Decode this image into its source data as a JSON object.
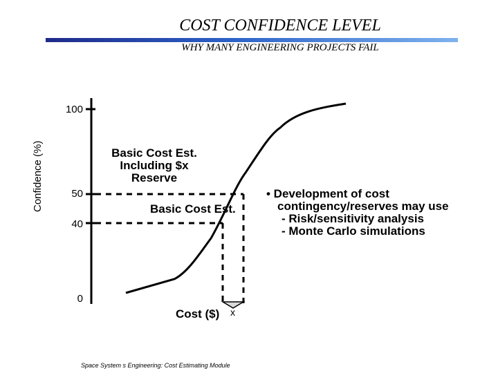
{
  "header": {
    "title": "COST CONFIDENCE LEVEL",
    "subtitle": "WHY MANY ENGINEERING PROJECTS FAIL"
  },
  "chart": {
    "ylabel": "Confidence (%)",
    "ticks": {
      "t100": "100",
      "t50": "50",
      "t40": "40",
      "t0": "0"
    },
    "xlabel": "Cost ($)",
    "x_marker": "x",
    "annotation_reserve": [
      "Basic Cost Est.",
      "Including  $x",
      "Reserve"
    ],
    "annotation_basic": "Basic Cost Est."
  },
  "bullets": {
    "heading": "• Development of cost",
    "line2": "contingency/reserves may use",
    "line3": "- Risk/sensitivity analysis",
    "line4": "- Monte Carlo simulations"
  },
  "footer": "Space System s Engineering: Cost Estimating Module"
}
